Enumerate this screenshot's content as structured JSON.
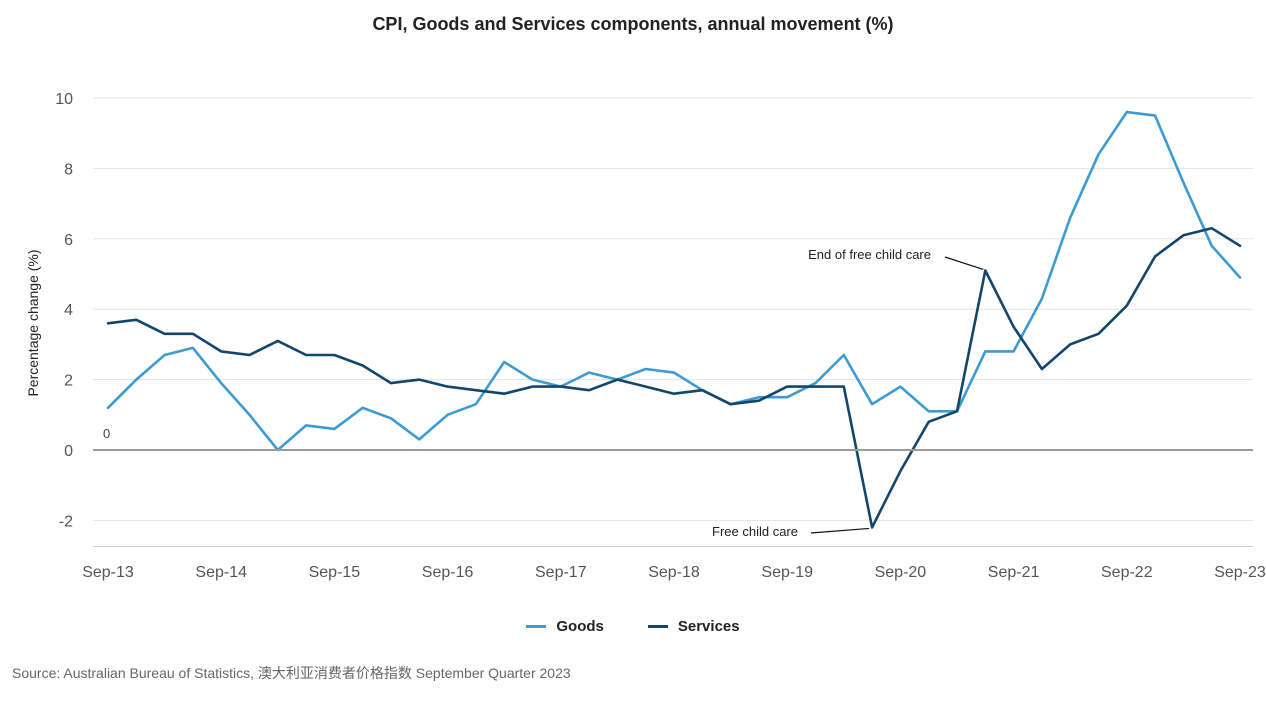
{
  "chart_data": {
    "type": "line",
    "title": "CPI, Goods and Services components, annual movement (%)",
    "xlabel": "",
    "ylabel": "Percentage change (%)",
    "ylim": [
      -2.8,
      10.3
    ],
    "yticks": [
      -2,
      0,
      2,
      4,
      6,
      8,
      10
    ],
    "ytick_labels": [
      "-2",
      "0",
      "2",
      "4",
      "6",
      "8",
      "10"
    ],
    "x_tick_labels": [
      "Sep-13",
      "Sep-14",
      "Sep-15",
      "Sep-16",
      "Sep-17",
      "Sep-18",
      "Sep-19",
      "Sep-20",
      "Sep-21",
      "Sep-22",
      "Sep-23"
    ],
    "x_count": 41,
    "grid": true,
    "legend_position": "bottom",
    "series": [
      {
        "name": "Goods",
        "color": "#3d9bd1",
        "values": [
          1.2,
          2.0,
          2.7,
          2.9,
          1.9,
          1.0,
          0.0,
          0.7,
          0.6,
          1.2,
          0.9,
          0.3,
          1.0,
          1.3,
          2.5,
          2.0,
          1.8,
          2.2,
          2.0,
          2.3,
          2.2,
          1.7,
          1.3,
          1.5,
          1.5,
          1.9,
          2.7,
          1.3,
          1.8,
          1.1,
          1.1,
          2.8,
          2.8,
          4.3,
          6.6,
          8.4,
          9.6,
          9.5,
          7.6,
          5.8,
          4.9
        ]
      },
      {
        "name": "Services",
        "color": "#14466b",
        "values": [
          3.6,
          3.7,
          3.3,
          3.3,
          2.8,
          2.7,
          3.1,
          2.7,
          2.7,
          2.4,
          1.9,
          2.0,
          1.8,
          1.7,
          1.6,
          1.8,
          1.8,
          1.7,
          2.0,
          1.8,
          1.6,
          1.7,
          1.3,
          1.4,
          1.8,
          1.8,
          1.8,
          -2.2,
          -0.6,
          0.8,
          1.1,
          5.1,
          3.5,
          2.3,
          3.0,
          3.3,
          4.1,
          5.5,
          6.1,
          6.3,
          5.8
        ]
      }
    ],
    "annotations": [
      {
        "text": "End of free child care",
        "series": "Services",
        "index": 31
      },
      {
        "text": "Free child care",
        "series": "Services",
        "index": 27
      }
    ],
    "zero_label": "0"
  },
  "source": "Source: Australian Bureau of Statistics, 澳大利亚消费者价格指数 September Quarter 2023"
}
